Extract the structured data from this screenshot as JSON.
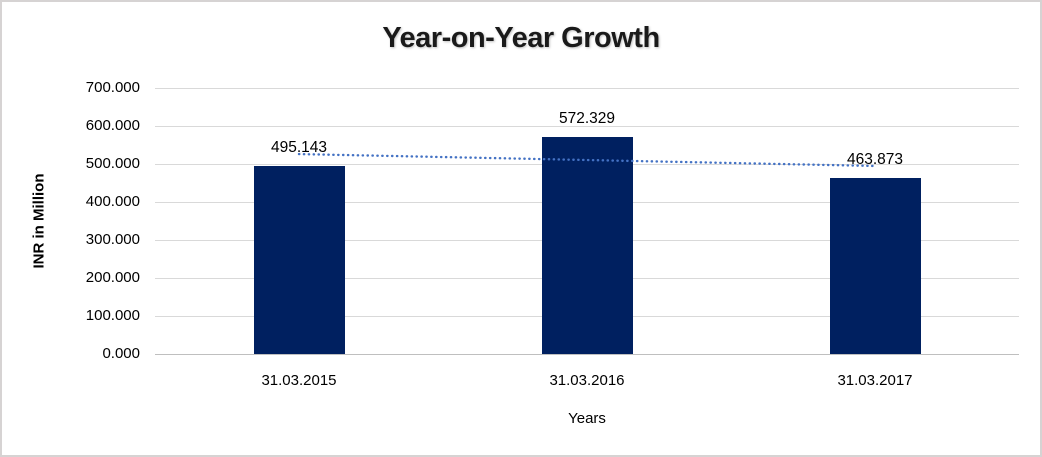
{
  "chart_data": {
    "type": "bar",
    "title": "Year-on-Year Growth",
    "xlabel": "Years",
    "ylabel": "INR in Million",
    "categories": [
      "31.03.2015",
      "31.03.2016",
      "31.03.2017"
    ],
    "values": [
      495.143,
      572.329,
      463.873
    ],
    "value_labels": [
      "495.143",
      "572.329",
      "463.873"
    ],
    "ylim": [
      0,
      700
    ],
    "ytick_interval": 100,
    "ytick_labels": [
      "0.000",
      "100.000",
      "200.000",
      "300.000",
      "400.000",
      "500.000",
      "600.000",
      "700.000"
    ],
    "grid": true,
    "legend": false,
    "trendline": {
      "kind": "linear",
      "style": "dotted",
      "start_value": 526.1,
      "end_value": 494.8
    }
  },
  "colors": {
    "bar": "#002060",
    "trendline": "#4472c4",
    "gridline": "#d9d9d9",
    "axis_line": "#bfbfbf",
    "text": "#000000",
    "frame_border": "#d6d3d3",
    "background": "#ffffff"
  }
}
